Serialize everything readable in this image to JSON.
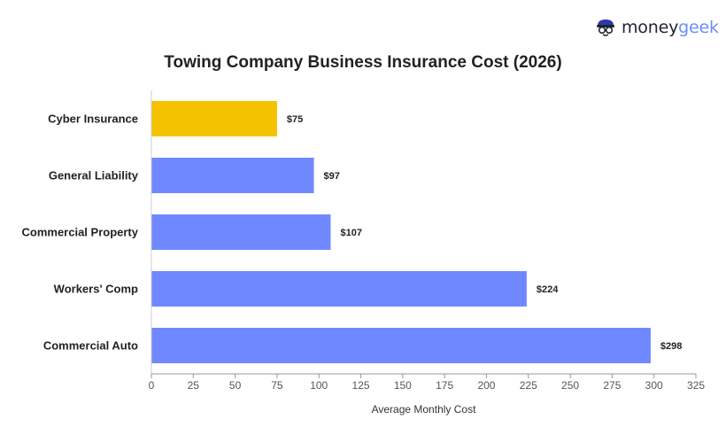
{
  "brand": {
    "name_prefix": "money",
    "name_suffix": "geek",
    "icon": "geek-face-icon"
  },
  "colors": {
    "highlight": "#F5C200",
    "bar": "#7088FF",
    "axis": "#999999",
    "text": "#222222"
  },
  "chart_data": {
    "type": "bar",
    "orientation": "horizontal",
    "title": "Towing Company Business Insurance Cost (2026)",
    "xlabel": "Average Monthly Cost",
    "ylabel": "",
    "categories": [
      "Cyber Insurance",
      "General Liability",
      "Commercial Property",
      "Workers' Comp",
      "Commercial Auto"
    ],
    "values": [
      75,
      97,
      107,
      224,
      298
    ],
    "value_labels": [
      "$75",
      "$97",
      "$107",
      "$224",
      "$298"
    ],
    "highlight_index": 0,
    "xlim": [
      0,
      325
    ],
    "xticks": [
      0,
      25,
      50,
      75,
      100,
      125,
      150,
      175,
      200,
      225,
      250,
      275,
      300,
      325
    ],
    "grid": false,
    "legend": "none"
  }
}
